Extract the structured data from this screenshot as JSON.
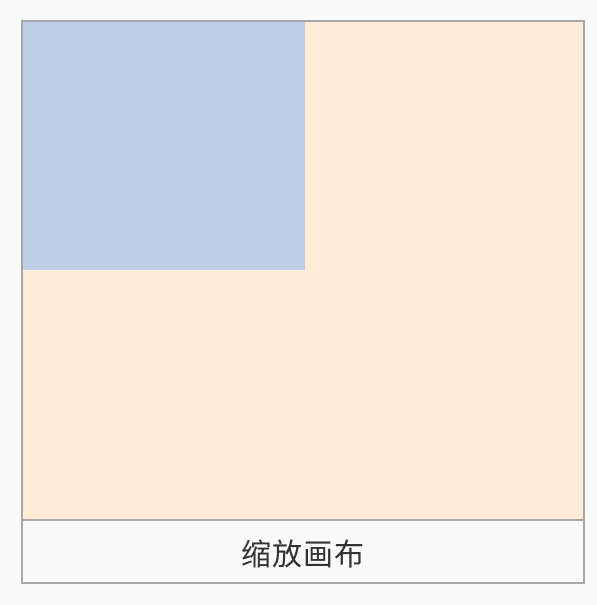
{
  "demo": {
    "caption": "缩放画布",
    "colors": {
      "canvas_background": "#feecd6",
      "scaled_rect": "#c0cfe8",
      "border": "#a8a8a8",
      "caption_background": "#fafafa",
      "caption_text": "#333333"
    }
  }
}
